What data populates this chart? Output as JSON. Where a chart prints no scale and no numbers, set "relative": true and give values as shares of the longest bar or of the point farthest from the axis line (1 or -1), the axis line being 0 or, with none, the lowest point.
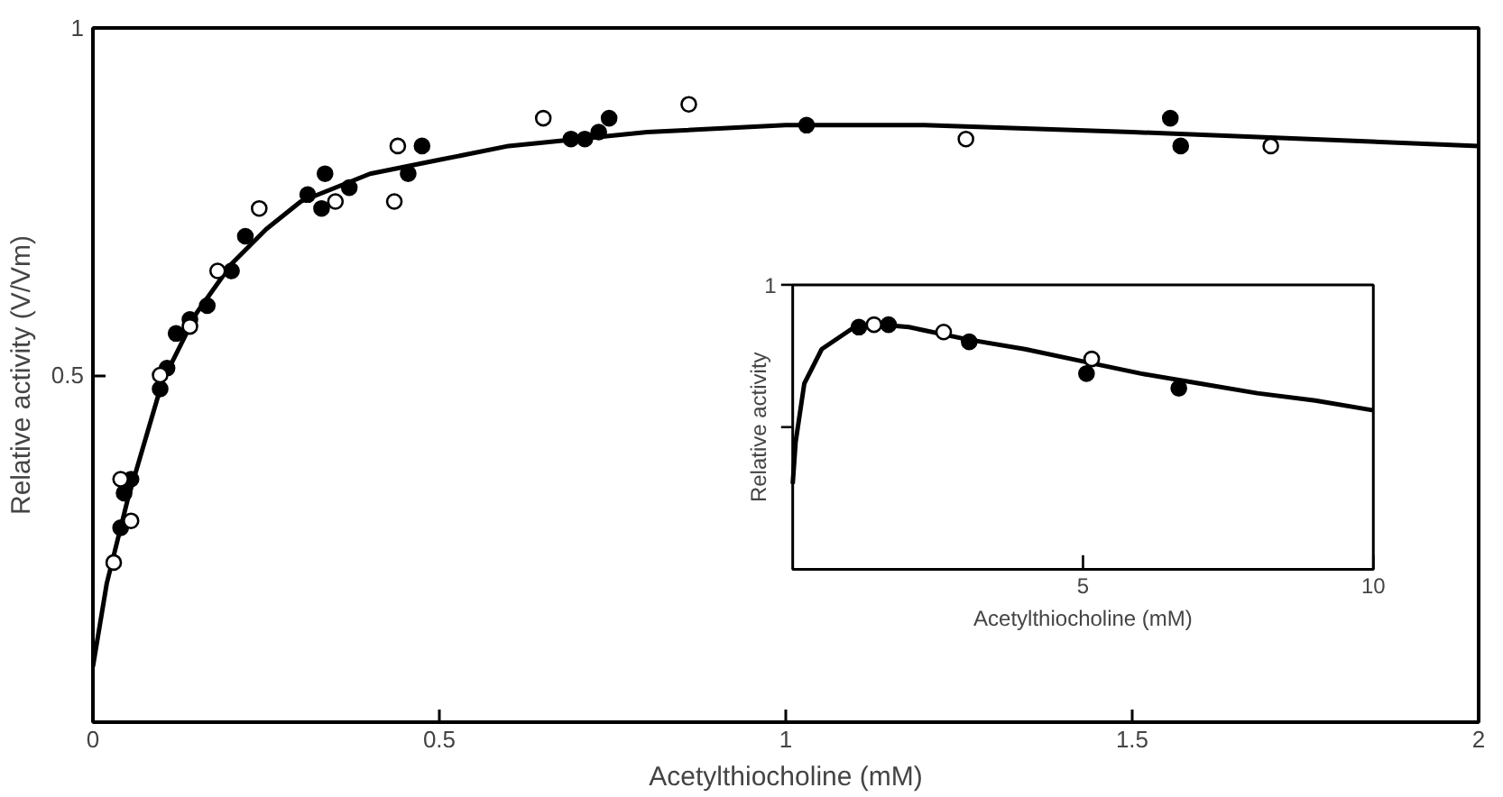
{
  "chart_data": [
    {
      "type": "scatter",
      "xlabel": "Acetylthiocholine (mM)",
      "ylabel": "Relative activity (V/Vm)",
      "xlim": [
        0,
        2
      ],
      "ylim": [
        0,
        1
      ],
      "xticks": [
        0,
        0.5,
        1,
        1.5,
        2
      ],
      "yticks": [
        0.5,
        1
      ],
      "grid": false,
      "marker": "circle",
      "series": [
        {
          "color": "#ffffff",
          "x": [
            0.03,
            0.04,
            0.055,
            0.097,
            0.14,
            0.18,
            0.24,
            0.35,
            0.435,
            0.44,
            0.65,
            0.86,
            1.26,
            1.7
          ],
          "values": [
            0.23,
            0.35,
            0.29,
            0.5,
            0.57,
            0.65,
            0.74,
            0.75,
            0.75,
            0.83,
            0.87,
            0.89,
            0.84,
            0.83
          ]
        },
        {
          "color": "#000000",
          "x": [
            0.04,
            0.045,
            0.055,
            0.097,
            0.107,
            0.12,
            0.14,
            0.165,
            0.2,
            0.22,
            0.31,
            0.335,
            0.33,
            0.37,
            0.455,
            0.475,
            0.69,
            0.71,
            0.73,
            0.745,
            1.03,
            1.555,
            1.57
          ],
          "values": [
            0.28,
            0.33,
            0.35,
            0.48,
            0.51,
            0.56,
            0.58,
            0.6,
            0.65,
            0.7,
            0.76,
            0.79,
            0.74,
            0.77,
            0.79,
            0.83,
            0.84,
            0.84,
            0.85,
            0.87,
            0.86,
            0.87,
            0.83
          ]
        },
        {
          "type": "line",
          "marker": "none",
          "color": "#000000",
          "x": [
            0,
            0.02,
            0.05,
            0.1,
            0.15,
            0.2,
            0.25,
            0.3,
            0.4,
            0.5,
            0.6,
            0.7,
            0.8,
            1.0,
            1.2,
            1.5,
            2.0
          ],
          "values": [
            0.08,
            0.2,
            0.32,
            0.49,
            0.59,
            0.66,
            0.71,
            0.75,
            0.79,
            0.81,
            0.83,
            0.84,
            0.85,
            0.86,
            0.86,
            0.85,
            0.83
          ]
        }
      ]
    },
    {
      "type": "scatter",
      "xlabel": "Acetylthiocholine (mM)",
      "ylabel": "Relative activity",
      "xlim": [
        0,
        10
      ],
      "xticks": [
        5,
        10
      ],
      "relative": true,
      "annotations": [
        "1"
      ],
      "grid": false,
      "marker": "circle",
      "series": [
        {
          "color": "#ffffff",
          "x": [
            1.4,
            2.6,
            5.15
          ],
          "values": [
            1,
            0.97,
            0.86
          ]
        },
        {
          "color": "#000000",
          "x": [
            1.14,
            1.65,
            3.04,
            5.06,
            6.65
          ],
          "values": [
            0.99,
            1,
            0.93,
            0.8,
            0.74
          ]
        },
        {
          "type": "line",
          "marker": "none",
          "color": "#000000",
          "x": [
            0,
            0.05,
            0.2,
            0.5,
            1,
            1.5,
            2,
            3,
            4,
            5,
            6,
            7,
            8,
            9,
            10
          ],
          "values": [
            0.35,
            0.52,
            0.76,
            0.9,
            0.98,
            1,
            0.99,
            0.94,
            0.9,
            0.85,
            0.8,
            0.76,
            0.72,
            0.69,
            0.65
          ]
        }
      ]
    }
  ]
}
